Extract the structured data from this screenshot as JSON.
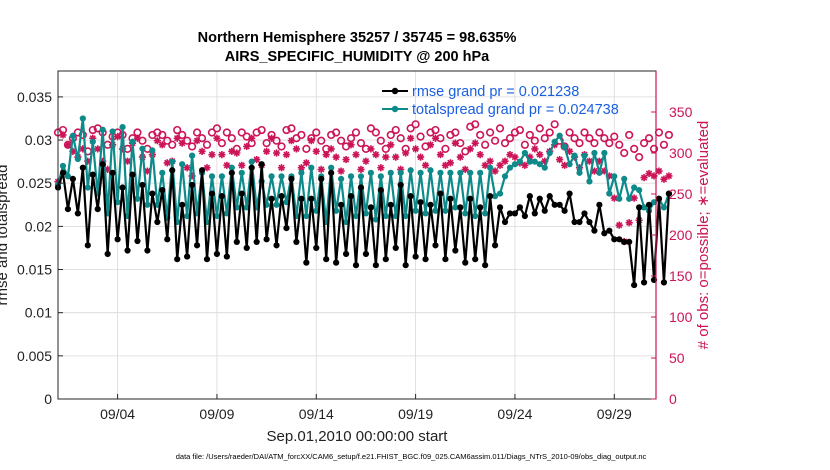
{
  "chart_data": {
    "type": "line",
    "title_line1": "Northern Hemisphere 35257 / 35745 = 98.635%",
    "title_line2": "AIRS_SPECIFIC_HUMIDITY @ 200 hPa",
    "xlabel": "Sep.01,2010 00:00:00 start",
    "ylabel_left": "rmse and totalspread",
    "ylabel_right": "# of obs: o=possible; ∗=evaluated",
    "x_range_days": [
      1,
      31.1
    ],
    "x_ticks": [
      {
        "day": 4,
        "label": "09/04"
      },
      {
        "day": 9,
        "label": "09/09"
      },
      {
        "day": 14,
        "label": "09/14"
      },
      {
        "day": 19,
        "label": "09/19"
      },
      {
        "day": 24,
        "label": "09/24"
      },
      {
        "day": 29,
        "label": "09/29"
      }
    ],
    "ylim_left": [
      0,
      0.038
    ],
    "y_ticks_left": [
      "0",
      "0.005",
      "0.01",
      "0.015",
      "0.02",
      "0.025",
      "0.03",
      "0.035"
    ],
    "ylim_right": [
      0,
      400
    ],
    "y_ticks_right": [
      "0",
      "50",
      "100",
      "150",
      "200",
      "250",
      "300",
      "350"
    ],
    "legend": [
      {
        "name": "rmse grand pr = 0.021238",
        "color": "#000000"
      },
      {
        "name": "totalspread grand pr = 0.024738",
        "color": "#0e8a8a"
      }
    ],
    "series": [
      {
        "name": "rmse",
        "color": "#000000",
        "values": [
          0.0245,
          0.0262,
          0.022,
          0.0255,
          0.0215,
          0.0268,
          0.0178,
          0.026,
          0.022,
          0.0272,
          0.0168,
          0.0262,
          0.0185,
          0.0245,
          0.0172,
          0.026,
          0.0183,
          0.0248,
          0.0172,
          0.0238,
          0.0205,
          0.0242,
          0.0185,
          0.0265,
          0.0162,
          0.0225,
          0.0165,
          0.0248,
          0.0178,
          0.0265,
          0.0162,
          0.0238,
          0.0168,
          0.0235,
          0.0165,
          0.0262,
          0.0182,
          0.0238,
          0.0175,
          0.0268,
          0.0182,
          0.0272,
          0.0185,
          0.0232,
          0.0178,
          0.0235,
          0.0198,
          0.0255,
          0.0182,
          0.0232,
          0.0158,
          0.0232,
          0.0175,
          0.0255,
          0.0162,
          0.0262,
          0.0158,
          0.0225,
          0.0168,
          0.0235,
          0.0155,
          0.0245,
          0.0168,
          0.0222,
          0.0155,
          0.0242,
          0.0162,
          0.0225,
          0.0175,
          0.0248,
          0.0155,
          0.0235,
          0.0165,
          0.0228,
          0.0162,
          0.0225,
          0.0178,
          0.0238,
          0.0162,
          0.0232,
          0.0172,
          0.0222,
          0.0158,
          0.0232,
          0.0162,
          0.0222,
          0.0155,
          0.0235,
          0.0178,
          0.0222,
          0.0205,
          0.0215,
          0.0215,
          0.0222,
          0.0212,
          0.0235,
          0.0215,
          0.0232,
          0.0218,
          0.0235,
          0.0225,
          0.0225,
          0.0218,
          0.0238,
          0.0205,
          0.0205,
          0.0215,
          0.0205,
          0.0195,
          0.0225,
          0.0192,
          0.0195,
          0.0185,
          0.0185,
          0.0182,
          0.0182,
          0.0132,
          0.0222,
          0.0135,
          0.0225,
          0.0138,
          0.0232,
          0.0135,
          0.0238
        ]
      },
      {
        "name": "totalspread",
        "color": "#0e8a8a",
        "values": [
          0.0248,
          0.027,
          0.0258,
          0.0305,
          0.0278,
          0.0325,
          0.0245,
          0.0298,
          0.0238,
          0.0312,
          0.0215,
          0.031,
          0.0228,
          0.0315,
          0.0212,
          0.0298,
          0.0232,
          0.029,
          0.0225,
          0.0288,
          0.0225,
          0.0262,
          0.021,
          0.0275,
          0.0205,
          0.0272,
          0.0212,
          0.0282,
          0.0215,
          0.0262,
          0.0205,
          0.0258,
          0.0212,
          0.0258,
          0.0215,
          0.0268,
          0.0222,
          0.0262,
          0.0222,
          0.0275,
          0.0222,
          0.0252,
          0.0225,
          0.0258,
          0.0225,
          0.0258,
          0.0228,
          0.0258,
          0.0212,
          0.0262,
          0.0212,
          0.0268,
          0.0218,
          0.0258,
          0.0205,
          0.0268,
          0.0218,
          0.0255,
          0.0205,
          0.0258,
          0.0212,
          0.0258,
          0.0215,
          0.0262,
          0.0208,
          0.0258,
          0.0212,
          0.0262,
          0.0212,
          0.0262,
          0.0212,
          0.0265,
          0.0218,
          0.0262,
          0.0215,
          0.0265,
          0.0218,
          0.0262,
          0.0218,
          0.0262,
          0.0222,
          0.0262,
          0.0215,
          0.0262,
          0.0212,
          0.0262,
          0.0215,
          0.0268,
          0.0235,
          0.0238,
          0.0258,
          0.0268,
          0.0272,
          0.0275,
          0.0285,
          0.0275,
          0.0275,
          0.0272,
          0.0268,
          0.0285,
          0.0298,
          0.0305,
          0.0292,
          0.0272,
          0.0282,
          0.0262,
          0.0282,
          0.0252,
          0.0285,
          0.0262,
          0.0285,
          0.0238,
          0.0258,
          0.0232,
          0.0255,
          0.0232,
          0.0245,
          0.0242,
          0.0222,
          0.0218,
          0.0228,
          0.0232,
          0.0222,
          0.0238
        ]
      },
      {
        "name": "obs_possible",
        "axis": "right",
        "color": "#cc1458",
        "values": [
          325,
          328,
          310,
          318,
          325,
          322,
          302,
          328,
          330,
          325,
          310,
          320,
          325,
          322,
          305,
          318,
          325,
          315,
          305,
          322,
          325,
          322,
          315,
          310,
          328,
          322,
          315,
          308,
          325,
          318,
          310,
          325,
          330,
          312,
          325,
          318,
          305,
          325,
          320,
          312,
          325,
          328,
          312,
          322,
          315,
          308,
          328,
          330,
          318,
          322,
          305,
          318,
          325,
          315,
          305,
          322,
          325,
          315,
          308,
          318,
          325,
          312,
          305,
          330,
          325,
          315,
          305,
          322,
          328,
          318,
          305,
          330,
          335,
          320,
          308,
          325,
          328,
          318,
          305,
          322,
          325,
          312,
          302,
          332,
          335,
          322,
          310,
          325,
          315,
          330,
          312,
          318,
          325,
          328,
          310,
          322,
          315,
          330,
          318,
          325,
          335,
          315,
          308,
          325,
          318,
          312,
          325,
          318,
          312,
          325,
          318,
          312,
          320,
          310,
          300,
          322,
          305,
          295,
          312,
          318,
          305,
          325,
          310,
          322
        ]
      },
      {
        "name": "obs_evaluated",
        "axis": "right",
        "color": "#cc1458",
        "values": [
          265,
          322,
          310,
          302,
          295,
          305,
          290,
          318,
          305,
          290,
          280,
          310,
          320,
          305,
          290,
          312,
          318,
          295,
          278,
          298,
          315,
          310,
          288,
          290,
          318,
          312,
          282,
          272,
          315,
          302,
          282,
          298,
          318,
          298,
          285,
          302,
          300,
          285,
          308,
          318,
          292,
          285,
          302,
          318,
          300,
          282,
          298,
          315,
          305,
          282,
          288,
          315,
          302,
          280,
          298,
          305,
          295,
          278,
          292,
          310,
          298,
          280,
          290,
          305,
          298,
          282,
          295,
          310,
          295,
          280,
          300,
          318,
          305,
          295,
          285,
          310,
          318,
          298,
          285,
          288,
          312,
          295,
          280,
          305,
          312,
          298,
          285,
          290,
          278,
          285,
          290,
          298,
          295,
          288,
          285,
          295,
          305,
          298,
          290,
          302,
          310,
          292,
          285,
          302,
          295,
          282,
          298,
          290,
          278,
          290,
          278,
          272,
          245,
          212,
          192,
          215,
          245,
          218,
          270,
          275,
          272,
          278,
          268,
          272
        ]
      }
    ]
  },
  "footer": "data file: /Users/raeder/DAI/ATM_forcXX/CAM6_setup/f.e21.FHIST_BGC.f09_025.CAM6assim.011/Diags_NTrS_2010-09/obs_diag_output.nc"
}
